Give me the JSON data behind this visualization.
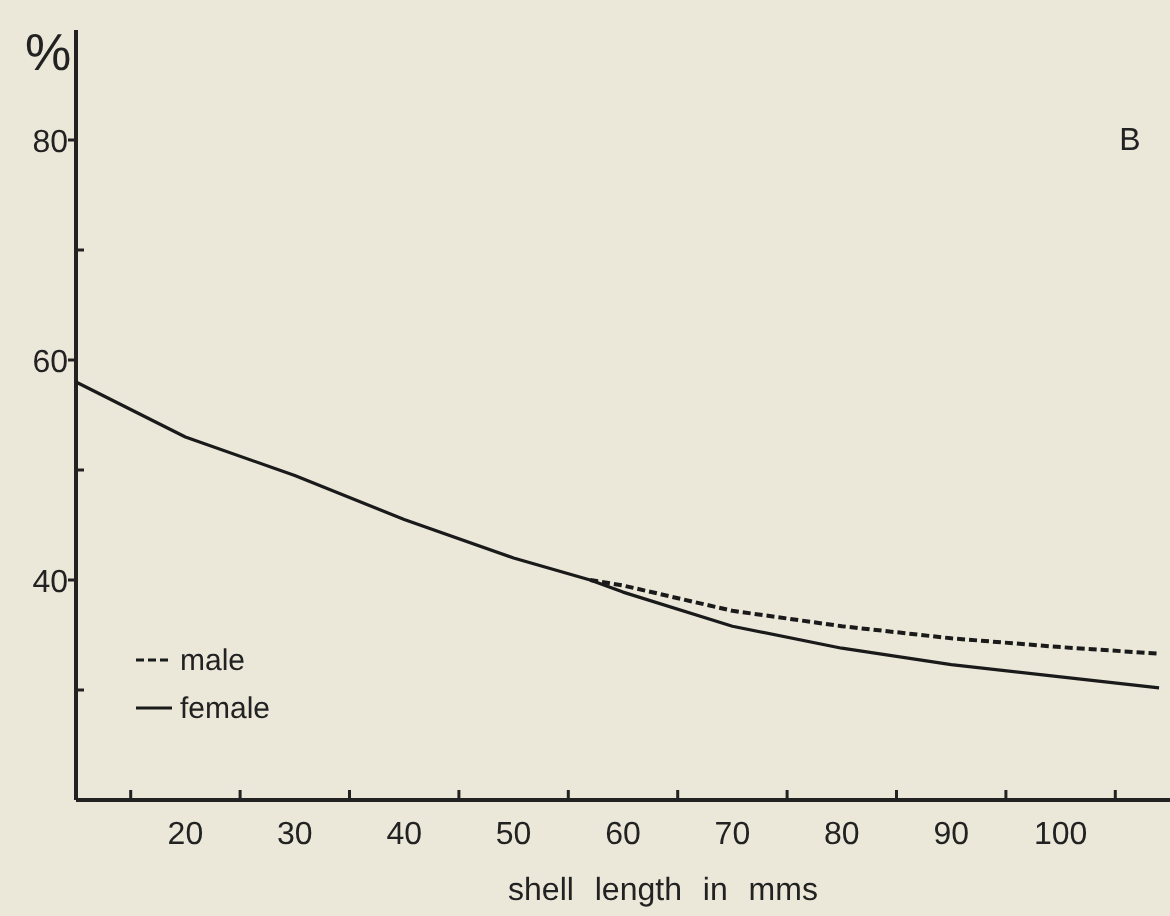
{
  "chart_data": {
    "type": "line",
    "title": "B",
    "xlabel": "shell length in mms",
    "ylabel": "%",
    "xlim": [
      10,
      110
    ],
    "ylim": [
      20,
      90
    ],
    "xticks": [
      {
        "value": 15,
        "label": null
      },
      20,
      {
        "value": 25,
        "label": null
      },
      30,
      {
        "value": 35,
        "label": null
      },
      40,
      {
        "value": 45,
        "label": null
      },
      50,
      {
        "value": 55,
        "label": null
      },
      60,
      {
        "value": 65,
        "label": null
      },
      70,
      {
        "value": 75,
        "label": null
      },
      80,
      {
        "value": 85,
        "label": null
      },
      90,
      {
        "value": 95,
        "label": null
      },
      100,
      {
        "value": 105,
        "label": null
      }
    ],
    "yticks": [
      {
        "value": 30,
        "label": null
      },
      40,
      {
        "value": 50,
        "label": null
      },
      60,
      {
        "value": 70,
        "label": null
      },
      80
    ],
    "legend": "bottom left",
    "marker": "none",
    "series": [
      {
        "name": "male",
        "color": "#1a1a1a",
        "line_style": "dashed",
        "x": [
          57,
          60,
          70,
          80,
          90,
          100,
          109
        ],
        "values": [
          40,
          39.5,
          37.2,
          35.8,
          34.7,
          33.9,
          33.3
        ]
      },
      {
        "name": "female",
        "color": "#1a1a1a",
        "line_style": "solid",
        "x": [
          10,
          20,
          30,
          40,
          50,
          57,
          60,
          70,
          80,
          90,
          100,
          109
        ],
        "values": [
          58,
          53,
          49.5,
          45.5,
          42,
          40,
          38.9,
          35.8,
          33.8,
          32.3,
          31.2,
          30.2
        ]
      }
    ]
  }
}
